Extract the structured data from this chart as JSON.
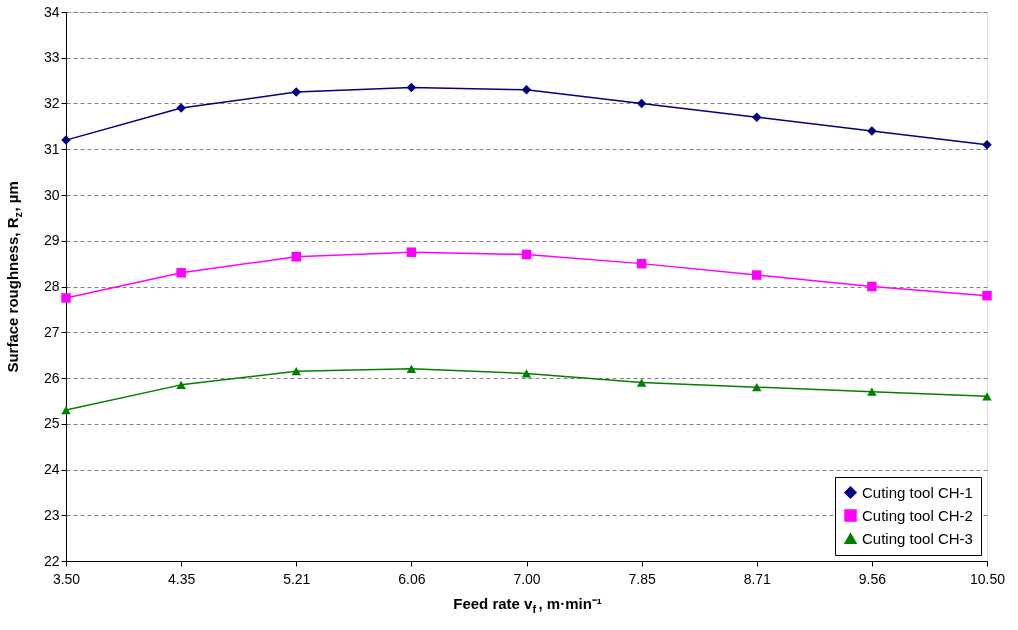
{
  "chart_data": {
    "type": "line",
    "xlabel": "Feed rate v$_{f}$, m·min⁻¹",
    "ylabel": "Surface roughness, R$_{z}$, µm",
    "categories": [
      "3.50",
      "4.35",
      "5.21",
      "6.06",
      "7.00",
      "7.85",
      "8.71",
      "9.56",
      "10.50"
    ],
    "series": [
      {
        "name": "Cuting tool CH-1",
        "color": "#000080",
        "marker": "diamond",
        "values": [
          31.2,
          31.9,
          32.25,
          32.35,
          32.3,
          32.0,
          31.7,
          31.4,
          31.1
        ]
      },
      {
        "name": "Cuting tool CH-2",
        "color": "#ff00ff",
        "marker": "square",
        "values": [
          27.75,
          28.3,
          28.65,
          28.75,
          28.7,
          28.5,
          28.25,
          28.0,
          27.8
        ]
      },
      {
        "name": "Cuting tool CH-3",
        "color": "#008000",
        "marker": "triangle",
        "values": [
          25.3,
          25.85,
          26.15,
          26.2,
          26.1,
          25.9,
          25.8,
          25.7,
          25.6
        ]
      }
    ],
    "ylim": [
      22,
      34
    ],
    "yticks": [
      22,
      23,
      24,
      25,
      26,
      27,
      28,
      29,
      30,
      31,
      32,
      33,
      34
    ],
    "grid": "y",
    "legend": "bottom right",
    "line_style": "solid"
  }
}
